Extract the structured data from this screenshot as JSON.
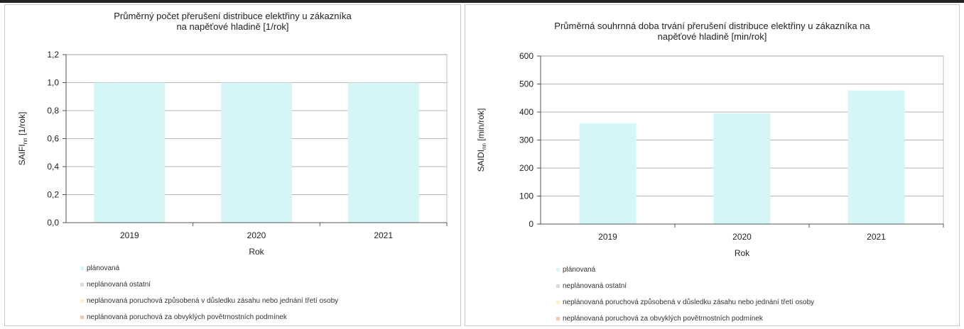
{
  "chart_data": [
    {
      "type": "bar",
      "title": "Průměrný počet přerušení distribuce elektřiny u zákazníka\nna napěťové hladině [1/rok]",
      "title_lines": [
        "Průměrný počet přerušení distribuce elektřiny u zákazníka",
        "na napěťové hladině [1/rok]"
      ],
      "xlabel": "Rok",
      "ylabel_main": "SAIFI",
      "ylabel_sub": "nn",
      "ylabel_tail": " [1/rok]",
      "categories": [
        "2019",
        "2020",
        "2021"
      ],
      "ylim": [
        0,
        1.2
      ],
      "yticks": [
        "0,0",
        "0,2",
        "0,4",
        "0,6",
        "0,8",
        "1,0",
        "1,2"
      ],
      "ytick_values": [
        0,
        0.2,
        0.4,
        0.6,
        0.8,
        1.0,
        1.2
      ],
      "series": [
        {
          "name": "plánovaná",
          "color": "#d4f6f7",
          "values": [
            1.0,
            1.0,
            1.0
          ]
        },
        {
          "name": "neplánovaná ostatní",
          "color": "#d9d9d9",
          "values": [
            0,
            0,
            0
          ]
        },
        {
          "name": "neplánovaná poruchová způsobená v důsledku zásahu nebo jednání třetí osoby",
          "color": "#fff3c4",
          "values": [
            0,
            0,
            0
          ]
        },
        {
          "name": "neplánovaná poruchová za obvyklých povětrnostních podmínek",
          "color": "#f7c9a8",
          "values": [
            0,
            0,
            0
          ]
        }
      ],
      "grid": true,
      "legend": "bottom-left"
    },
    {
      "type": "bar",
      "title": "Průměrná souhrnná doba trvání přerušení distribuce elektřiny u zákazníka na\nnapěťové hladině [min/rok]",
      "title_lines": [
        "Průměrná souhrnná doba trvání přerušení distribuce elektřiny u zákazníka na",
        "napěťové hladině [min/rok]"
      ],
      "xlabel": "Rok",
      "ylabel_main": "SAIDI",
      "ylabel_sub": "nn",
      "ylabel_tail": " [min/rok]",
      "categories": [
        "2019",
        "2020",
        "2021"
      ],
      "ylim": [
        0,
        600
      ],
      "yticks": [
        "0",
        "100",
        "200",
        "300",
        "400",
        "500",
        "600"
      ],
      "ytick_values": [
        0,
        100,
        200,
        300,
        400,
        500,
        600
      ],
      "series": [
        {
          "name": "plánovaná",
          "color": "#d4f6f7",
          "values": [
            360,
            395,
            477
          ]
        },
        {
          "name": "neplánovaná ostatní",
          "color": "#d9d9d9",
          "values": [
            0,
            0,
            0
          ]
        },
        {
          "name": "neplánovaná poruchová způsobená v důsledku zásahu nebo jednání třetí osoby",
          "color": "#fff3c4",
          "values": [
            0,
            0,
            0
          ]
        },
        {
          "name": "neplánovaná poruchová za obvyklých povětrnostních podmínek",
          "color": "#f7c9a8",
          "values": [
            0,
            0,
            0
          ]
        }
      ],
      "grid": true,
      "legend": "bottom-left"
    }
  ]
}
